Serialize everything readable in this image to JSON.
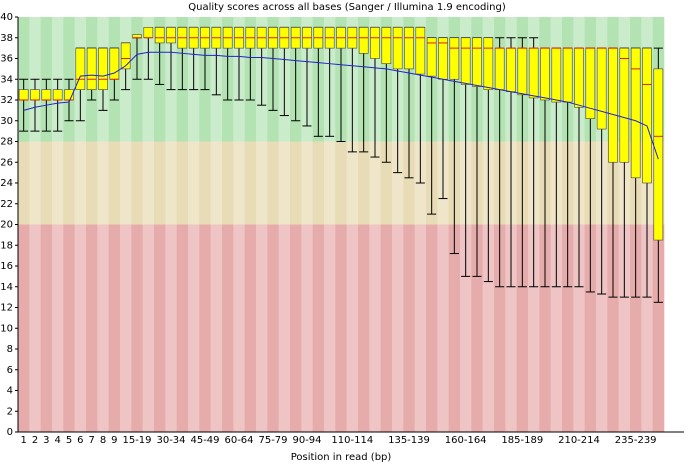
{
  "chart_data": {
    "type": "box",
    "title": "Quality scores across all bases (Sanger / Illumina 1.9 encoding)",
    "x_label": "Position in read (bp)",
    "categories": [
      "1",
      "2",
      "3",
      "4",
      "5",
      "6",
      "7",
      "8",
      "9",
      null,
      "15-19",
      null,
      null,
      "30-34",
      null,
      null,
      "45-49",
      null,
      null,
      "60-64",
      null,
      null,
      "75-79",
      null,
      null,
      "90-94",
      null,
      null,
      null,
      "110-114",
      null,
      null,
      null,
      null,
      "135-139",
      null,
      null,
      null,
      null,
      "160-164",
      null,
      null,
      null,
      null,
      "185-189",
      null,
      null,
      null,
      null,
      "210-214",
      null,
      null,
      null,
      null,
      "235-239",
      null,
      null
    ],
    "whisker_low": [
      29,
      29,
      29,
      29,
      30,
      30,
      32,
      31,
      32,
      33,
      34,
      34,
      33.5,
      33,
      33,
      33,
      33,
      32.5,
      32,
      32,
      32,
      31.5,
      31,
      30.5,
      30,
      29.5,
      28.5,
      28.5,
      28,
      27,
      27,
      26.5,
      26,
      25,
      24.5,
      24,
      21,
      22.5,
      17.2,
      15,
      15,
      14.5,
      14,
      14,
      14,
      14,
      14,
      14,
      14,
      14,
      13.5,
      13.3,
      13,
      13,
      13,
      13,
      12.5
    ],
    "q1": [
      32,
      32,
      32,
      32,
      32,
      33,
      33,
      33,
      34,
      35,
      38,
      38,
      37.5,
      37.5,
      37,
      37,
      37,
      37,
      37,
      37,
      37,
      37,
      37,
      37,
      37,
      37,
      37,
      37,
      37,
      37,
      36.5,
      36,
      35.5,
      35,
      35,
      34.5,
      34.3,
      34,
      34,
      33.5,
      33.3,
      33,
      33,
      32.8,
      32.5,
      32.2,
      32,
      31.8,
      31.8,
      31.3,
      30.2,
      29.2,
      26,
      26,
      24.5,
      24,
      18.5
    ],
    "median": [
      32,
      32,
      32,
      32,
      32,
      34,
      34,
      34,
      34,
      36,
      38,
      38,
      38,
      38,
      38,
      38,
      38,
      38,
      38,
      38,
      38,
      38,
      38,
      38,
      38,
      38,
      38,
      38,
      38,
      38,
      38,
      38,
      38,
      38,
      38,
      38,
      37.5,
      37.5,
      37,
      37,
      37,
      37,
      37,
      37,
      37,
      37,
      37,
      37,
      37,
      37,
      37,
      37,
      37,
      36,
      35,
      33.5,
      28.5
    ],
    "q3": [
      33,
      33,
      33,
      33,
      33,
      37,
      37,
      37,
      37,
      37.5,
      38.3,
      39,
      39,
      39,
      39,
      39,
      39,
      39,
      39,
      39,
      39,
      39,
      39,
      39,
      39,
      39,
      39,
      39,
      39,
      39,
      39,
      39,
      39,
      39,
      39,
      39,
      38,
      38,
      38,
      38,
      38,
      38,
      37,
      37,
      37,
      37,
      37,
      37,
      37,
      37,
      37,
      37,
      37,
      37,
      37,
      37,
      35
    ],
    "whisker_high": [
      34,
      34,
      34,
      34,
      34,
      37,
      37,
      37,
      37,
      37.5,
      38,
      38.5,
      39,
      39,
      39,
      39,
      39,
      39,
      39,
      39,
      39,
      39,
      39,
      39,
      39,
      39,
      39,
      39,
      39,
      39,
      39,
      39,
      39,
      39,
      39,
      39,
      38,
      38,
      38,
      38,
      38,
      38,
      38,
      38,
      38,
      38,
      37,
      37,
      37,
      37,
      37,
      37,
      37,
      37,
      37,
      37,
      37
    ],
    "mean": [
      31,
      31.3,
      31.5,
      31.7,
      31.8,
      34.3,
      34.4,
      34.3,
      34.6,
      35.3,
      36.4,
      36.6,
      36.6,
      36.6,
      36.5,
      36.4,
      36.3,
      36.3,
      36.2,
      36.2,
      36.1,
      36.1,
      36,
      35.9,
      35.8,
      35.7,
      35.6,
      35.5,
      35.4,
      35.3,
      35.2,
      35.1,
      35,
      34.8,
      34.6,
      34.4,
      34.2,
      34,
      33.8,
      33.6,
      33.4,
      33.2,
      33,
      32.8,
      32.6,
      32.4,
      32.2,
      32,
      31.8,
      31.5,
      31.2,
      30.9,
      30.6,
      30.3,
      30,
      29.5,
      26.3
    ],
    "box_color": "#ffff00",
    "median_color": "#dd2200",
    "mean_color": "#2222cc",
    "bands": [
      {
        "from": 28,
        "to": 40,
        "colors": [
          "#b3e2b3",
          "#cbeccb"
        ]
      },
      {
        "from": 20,
        "to": 28,
        "colors": [
          "#e8dcb6",
          "#efe6c9"
        ]
      },
      {
        "from": 0,
        "to": 20,
        "colors": [
          "#e6acac",
          "#eec4c4"
        ]
      }
    ],
    "ylim": [
      0,
      40
    ],
    "yticks": [
      0,
      2,
      4,
      6,
      8,
      10,
      12,
      14,
      16,
      18,
      20,
      22,
      24,
      26,
      28,
      30,
      32,
      34,
      36,
      38,
      40
    ]
  }
}
